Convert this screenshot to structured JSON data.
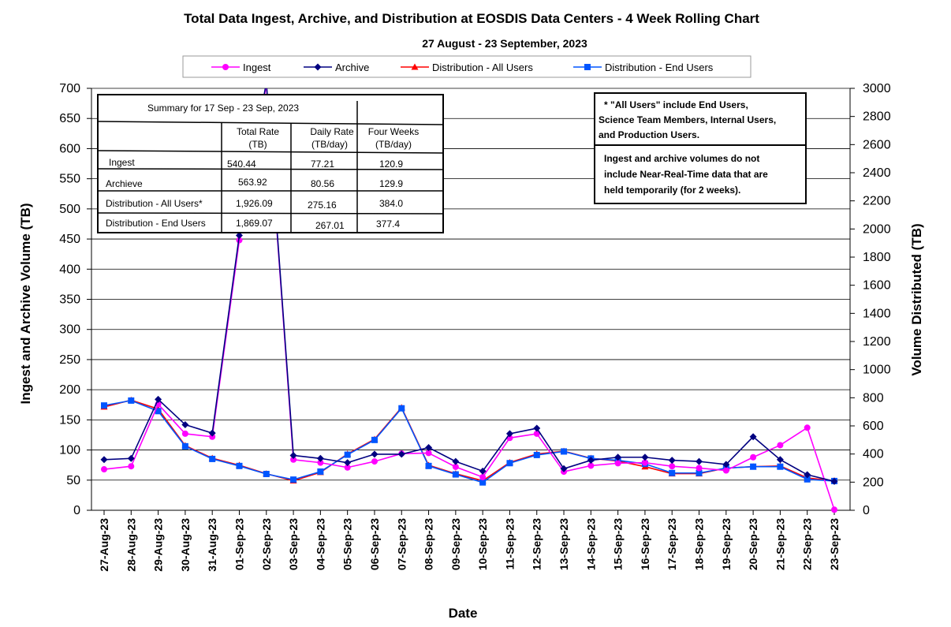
{
  "chart_data": {
    "type": "line",
    "title": "Total Data Ingest, Archive, and  Distribution at EOSDIS Data Centers - 4 Week Rolling Chart",
    "subtitle": "27 August   - 23 September,  2023",
    "xlabel": "Date",
    "ylabel_left": "Ingest and Archive Volume (TB)",
    "ylabel_right": "Volume Distributed (TB)",
    "ylim_left": [
      0,
      700
    ],
    "ylim_right": [
      0,
      3000
    ],
    "yticks_left": [
      "0",
      "50",
      "100",
      "150",
      "200",
      "250",
      "300",
      "350",
      "400",
      "450",
      "500",
      "550",
      "600",
      "650",
      "700"
    ],
    "yticks_right": [
      "0",
      "200",
      "400",
      "600",
      "800",
      "1000",
      "1200",
      "1400",
      "1600",
      "1800",
      "2000",
      "2200",
      "2400",
      "2600",
      "2800",
      "3000"
    ],
    "grid": true,
    "legend_position": "top",
    "categories": [
      "27-Aug-23",
      "28-Aug-23",
      "29-Aug-23",
      "30-Aug-23",
      "31-Aug-23",
      "01-Sep-23",
      "02-Sep-23",
      "03-Sep-23",
      "04-Sep-23",
      "05-Sep-23",
      "06-Sep-23",
      "07-Sep-23",
      "08-Sep-23",
      "09-Sep-23",
      "10-Sep-23",
      "11-Sep-23",
      "12-Sep-23",
      "13-Sep-23",
      "14-Sep-23",
      "15-Sep-23",
      "16-Sep-23",
      "17-Sep-23",
      "18-Sep-23",
      "19-Sep-23",
      "20-Sep-23",
      "21-Sep-23",
      "22-Sep-23",
      "23-Sep-23"
    ],
    "series": [
      {
        "name": "Ingest",
        "axis": "left",
        "color": "#ff00ff",
        "marker": "circle",
        "values": [
          68,
          73,
          176,
          127,
          122,
          448,
          706,
          84,
          79,
          71,
          81,
          94,
          95,
          72,
          55,
          120,
          127,
          64,
          74,
          78,
          79,
          73,
          70,
          66,
          88,
          108,
          137,
          1
        ]
      },
      {
        "name": "Archive",
        "axis": "left",
        "color": "#000080",
        "marker": "diamond",
        "values": [
          84,
          86,
          184,
          142,
          128,
          456,
          710,
          91,
          86,
          79,
          93,
          93,
          104,
          81,
          65,
          127,
          136,
          69,
          83,
          88,
          88,
          83,
          81,
          76,
          122,
          84,
          59,
          48
        ]
      },
      {
        "name": "Distribution - All Users",
        "axis": "right",
        "color": "#ff0000",
        "marker": "triangle",
        "values": [
          735,
          783,
          720,
          460,
          370,
          320,
          260,
          210,
          270,
          400,
          505,
          730,
          320,
          260,
          210,
          340,
          400,
          420,
          370,
          350,
          310,
          260,
          260,
          300,
          310,
          315,
          230,
          210
        ]
      },
      {
        "name": "Distribution - End Users",
        "axis": "right",
        "color": "#0055ff",
        "marker": "square",
        "values": [
          745,
          780,
          705,
          455,
          365,
          315,
          258,
          218,
          275,
          395,
          500,
          725,
          315,
          255,
          198,
          335,
          393,
          418,
          368,
          355,
          330,
          265,
          265,
          300,
          310,
          310,
          220,
          208
        ]
      }
    ]
  },
  "summary_table": {
    "title": "Summary  for  17  Sep  -  23  Sep,  2023",
    "col_headers": {
      "total_rate": "Total  Rate",
      "total_rate_unit": "(TB)",
      "daily_rate": "Daily Rate",
      "daily_rate_unit": "(TB/day)",
      "four_weeks": "Four Weeks",
      "four_weeks_unit": "(TB/day)"
    },
    "rows": [
      {
        "label": "Ingest",
        "total": "540.44",
        "daily": "77.21",
        "four_weeks": "120.9"
      },
      {
        "label": "Archieve",
        "total": "563.92",
        "daily": "80.56",
        "four_weeks": "129.9"
      },
      {
        "label": "Distribution - All Users*",
        "total": "1,926.09",
        "daily": "275.16",
        "four_weeks": "384.0"
      },
      {
        "label": "Distribution - End Users",
        "total": "1,869.07",
        "daily": "267.01",
        "four_weeks": "377.4"
      }
    ]
  },
  "notes": {
    "all_users": [
      " * \"All Users\" include End Users,",
      "Science Team Members,  Internal Users,",
      "and Production Users."
    ],
    "nrt": [
      "Ingest and archive volumes do not",
      "include Near-Real-Time data that are",
      "held temporarily (for 2 weeks)."
    ]
  }
}
